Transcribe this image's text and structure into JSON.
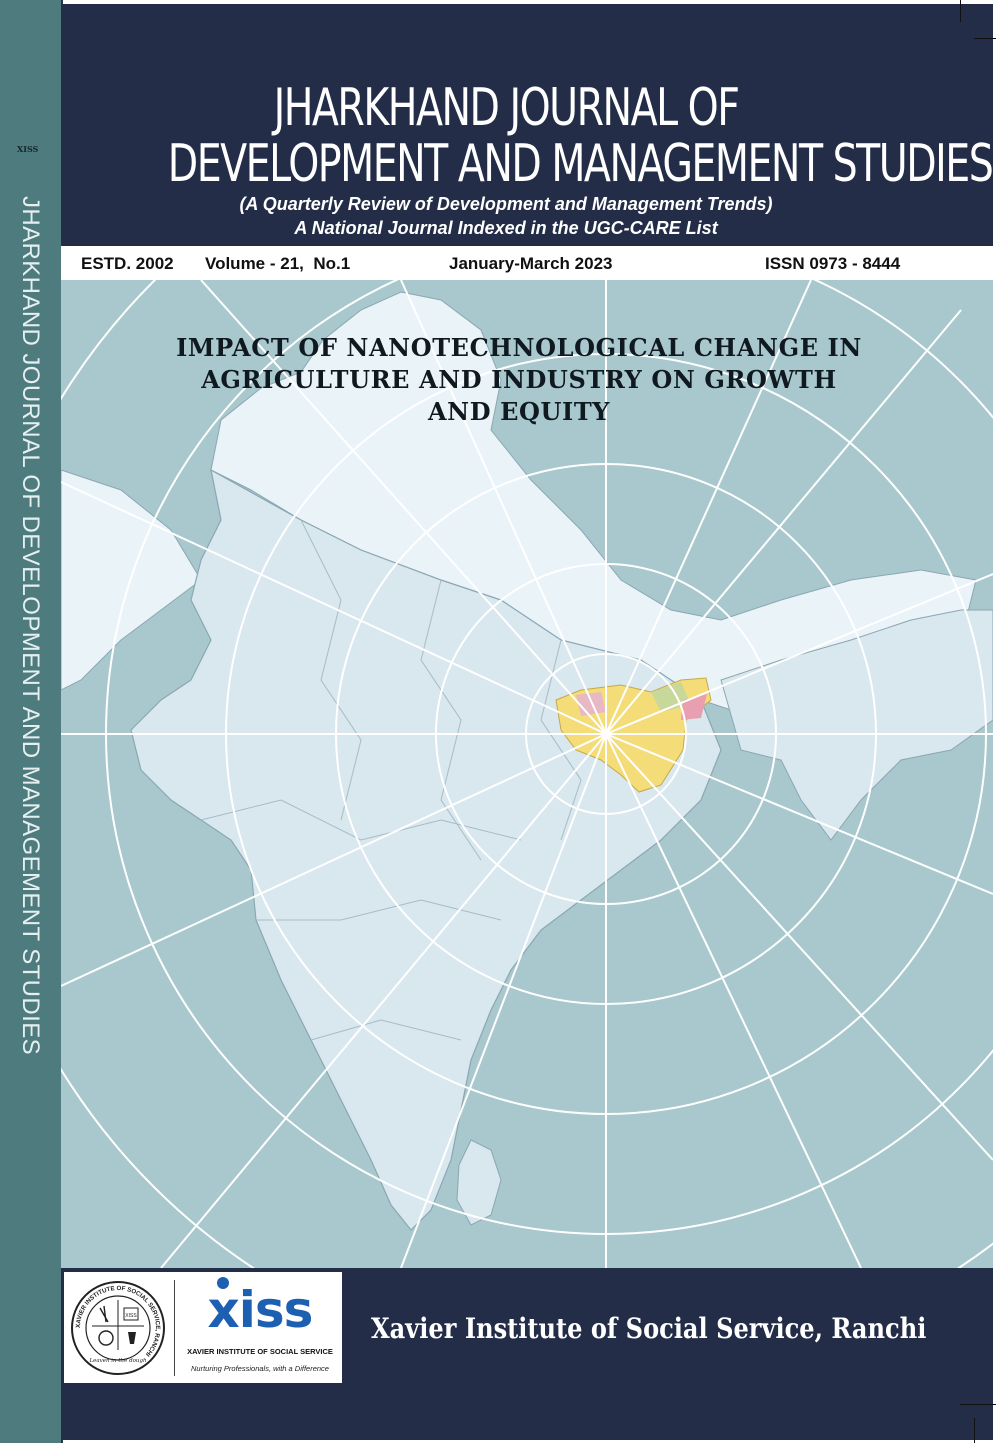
{
  "spine": {
    "tag": "XISS",
    "title": "JHARKHAND JOURNAL OF DEVELOPMENT AND MANAGEMENT STUDIES"
  },
  "header": {
    "title_line1": "JHARKHAND JOURNAL OF",
    "title_line2": "DEVELOPMENT AND MANAGEMENT STUDIES",
    "subtitle1": "(A Quarterly Review of Development and Management Trends)",
    "subtitle2": "A National Journal Indexed in the UGC-CARE List"
  },
  "info": {
    "estd": "ESTD. 2002",
    "volume": "Volume - 21,  No.1",
    "period": "January-March 2023",
    "issn": "ISSN 0973 - 8444"
  },
  "article": {
    "line1": "IMPACT OF NANOTECHNOLOGICAL CHANGE IN",
    "line2": "AGRICULTURE AND INDUSTRY ON GROWTH",
    "line3": "AND EQUITY"
  },
  "footer": {
    "logo_word": "xiss",
    "logo_name": "XAVIER INSTITUTE OF SOCIAL SERVICE",
    "logo_tagline": "Nurturing Professionals, with a Difference",
    "seal_ring": "XAVIER INSTITUTE OF SOCIAL SERVICE, RANCHI",
    "seal_motto": "Leaven in the dough",
    "seal_badge": "XISS",
    "institute": "Xavier Institute of Social Service, Ranchi"
  },
  "colors": {
    "navy": "#232d48",
    "spine": "#4d7b7e",
    "sea": "#a8c8cd",
    "land": "#dce9ef",
    "highlight": "#f4dc78"
  }
}
